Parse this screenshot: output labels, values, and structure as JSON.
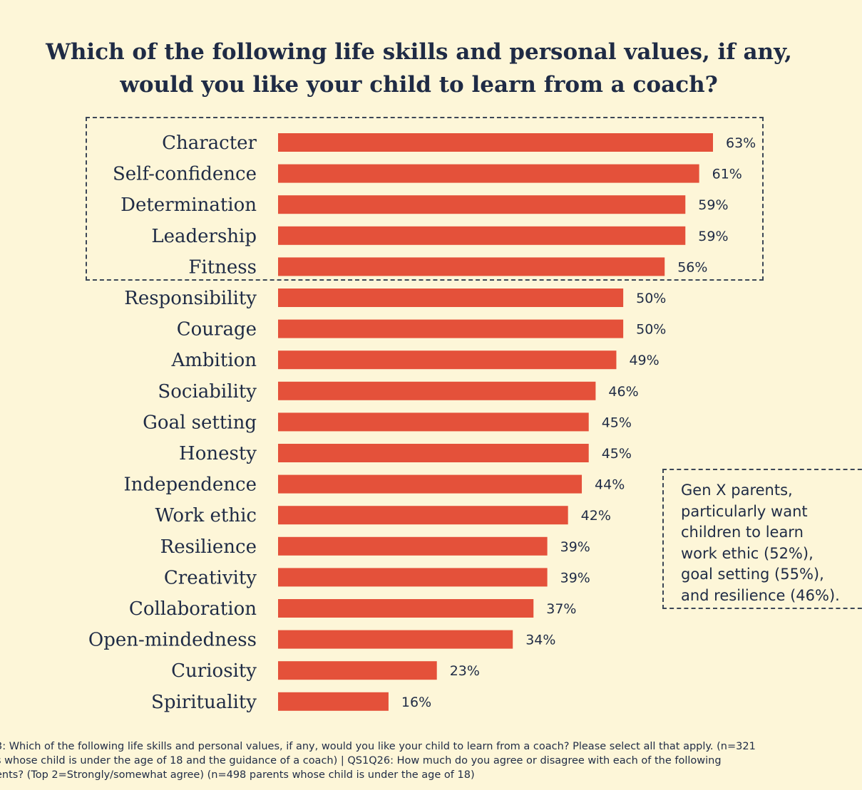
{
  "title": {
    "line1": "Which of the following life skills and personal values, if any,",
    "line2": "would you like your child to learn from a coach?"
  },
  "colors": {
    "bar": "#e4513a",
    "background": "#fdf6d8",
    "text": "#1f2b45"
  },
  "chart_data": {
    "type": "bar",
    "orientation": "horizontal",
    "categories": [
      "Character",
      "Self-confidence",
      "Determination",
      "Leadership",
      "Fitness",
      "Responsibility",
      "Courage",
      "Ambition",
      "Sociability",
      "Goal setting",
      "Honesty",
      "Independence",
      "Work ethic",
      "Resilience",
      "Creativity",
      "Collaboration",
      "Open-mindedness",
      "Curiosity",
      "Spirituality"
    ],
    "values": [
      63,
      61,
      59,
      59,
      56,
      50,
      50,
      49,
      46,
      45,
      45,
      44,
      42,
      39,
      39,
      37,
      34,
      23,
      16
    ],
    "value_labels": [
      "63%",
      "61%",
      "59%",
      "59%",
      "56%",
      "50%",
      "50%",
      "49%",
      "46%",
      "45%",
      "45%",
      "44%",
      "42%",
      "39%",
      "39%",
      "37%",
      "34%",
      "23%",
      "16%"
    ],
    "title": "Which of the following life skills and personal values, if any, would you like your child to learn from a coach?",
    "xlabel": "",
    "ylabel": "",
    "xlim": [
      0,
      63
    ],
    "grid": false,
    "highlighted_top": 5
  },
  "callout": {
    "lines": [
      "Gen X parents,",
      "particularly want",
      "children to learn",
      "work ethic (52%),",
      "goal setting (55%),",
      "and resilience (46%)."
    ]
  },
  "footnote": {
    "line1": "3: Which of the following life skills and personal values, if any, would you like your child to learn from a coach? Please select all that apply. (n=321",
    "line2": "s whose child is under the age of 18 and the guidance of a coach) | QS1Q26: How much do you agree or disagree with each of the following",
    "line3": "ents? (Top 2=Strongly/somewhat agree) (n=498 parents whose child is under the age of 18)"
  }
}
